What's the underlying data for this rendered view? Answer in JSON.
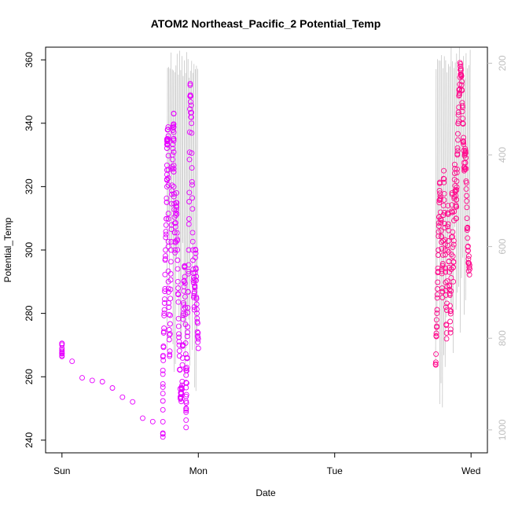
{
  "chart_data": {
    "type": "scatter",
    "title": "ATOM2 Northeast_Pacific_2 Potential_Temp",
    "xlabel": "Date",
    "ylabel": "Potential_Temp",
    "x_ticks": [
      "Sun",
      "Mon",
      "Tue",
      "Wed"
    ],
    "x_range_days": [
      -0.12,
      3.12
    ],
    "ylim": [
      236,
      364
    ],
    "y_ticks": [
      240,
      260,
      280,
      300,
      320,
      340,
      360
    ],
    "y2_ticks": [
      200,
      400,
      600,
      800,
      1000
    ],
    "y2lim": [
      165,
      1050
    ],
    "y2_reversed": true,
    "grid": false,
    "colors": {
      "early": "#e600ff",
      "late": "#ff0a8c",
      "trace": "#bfbfbf",
      "axis": "#000000"
    },
    "series": [
      {
        "points": [
          {
            "x": 0.0,
            "y": 269
          },
          {
            "x": 0.0,
            "y": 268
          },
          {
            "x": 0.74,
            "y": 241
          },
          {
            "x": 0.74,
            "y": 262
          },
          {
            "x": 0.75,
            "y": 280
          },
          {
            "x": 0.76,
            "y": 300
          },
          {
            "x": 0.77,
            "y": 320
          },
          {
            "x": 0.77,
            "y": 335
          },
          {
            "x": 0.78,
            "y": 336
          },
          {
            "x": 0.78,
            "y": 290
          },
          {
            "x": 0.79,
            "y": 267
          },
          {
            "x": 0.8,
            "y": 300
          },
          {
            "x": 0.81,
            "y": 330
          },
          {
            "x": 0.82,
            "y": 343
          },
          {
            "x": 0.82,
            "y": 320
          },
          {
            "x": 0.83,
            "y": 300
          },
          {
            "x": 0.84,
            "y": 318
          },
          {
            "x": 0.85,
            "y": 290
          },
          {
            "x": 0.86,
            "y": 270
          },
          {
            "x": 0.87,
            "y": 253
          },
          {
            "x": 0.88,
            "y": 256
          },
          {
            "x": 0.89,
            "y": 280
          },
          {
            "x": 0.9,
            "y": 295
          },
          {
            "x": 0.91,
            "y": 262
          },
          {
            "x": 0.91,
            "y": 244
          },
          {
            "x": 0.92,
            "y": 274
          },
          {
            "x": 0.93,
            "y": 300
          },
          {
            "x": 0.94,
            "y": 352
          },
          {
            "x": 0.95,
            "y": 340
          },
          {
            "x": 0.96,
            "y": 300
          },
          {
            "x": 0.97,
            "y": 282
          },
          {
            "x": 0.98,
            "y": 300
          },
          {
            "x": 0.99,
            "y": 280
          },
          {
            "x": 1.0,
            "y": 269
          }
        ]
      },
      {
        "points": [
          {
            "x": 2.74,
            "y": 264
          },
          {
            "x": 2.75,
            "y": 280
          },
          {
            "x": 2.76,
            "y": 300
          },
          {
            "x": 2.77,
            "y": 321
          },
          {
            "x": 2.78,
            "y": 306
          },
          {
            "x": 2.79,
            "y": 285
          },
          {
            "x": 2.8,
            "y": 325
          },
          {
            "x": 2.81,
            "y": 300
          },
          {
            "x": 2.82,
            "y": 272
          },
          {
            "x": 2.83,
            "y": 314
          },
          {
            "x": 2.84,
            "y": 293
          },
          {
            "x": 2.85,
            "y": 275
          },
          {
            "x": 2.86,
            "y": 318
          },
          {
            "x": 2.87,
            "y": 290
          },
          {
            "x": 2.88,
            "y": 327
          },
          {
            "x": 2.89,
            "y": 310
          },
          {
            "x": 2.9,
            "y": 330
          },
          {
            "x": 2.91,
            "y": 345
          },
          {
            "x": 2.92,
            "y": 358
          },
          {
            "x": 2.93,
            "y": 355
          },
          {
            "x": 2.94,
            "y": 340
          },
          {
            "x": 2.95,
            "y": 325
          },
          {
            "x": 2.96,
            "y": 331
          },
          {
            "x": 2.97,
            "y": 310
          },
          {
            "x": 2.98,
            "y": 296
          },
          {
            "x": 2.99,
            "y": 294
          }
        ]
      }
    ]
  }
}
